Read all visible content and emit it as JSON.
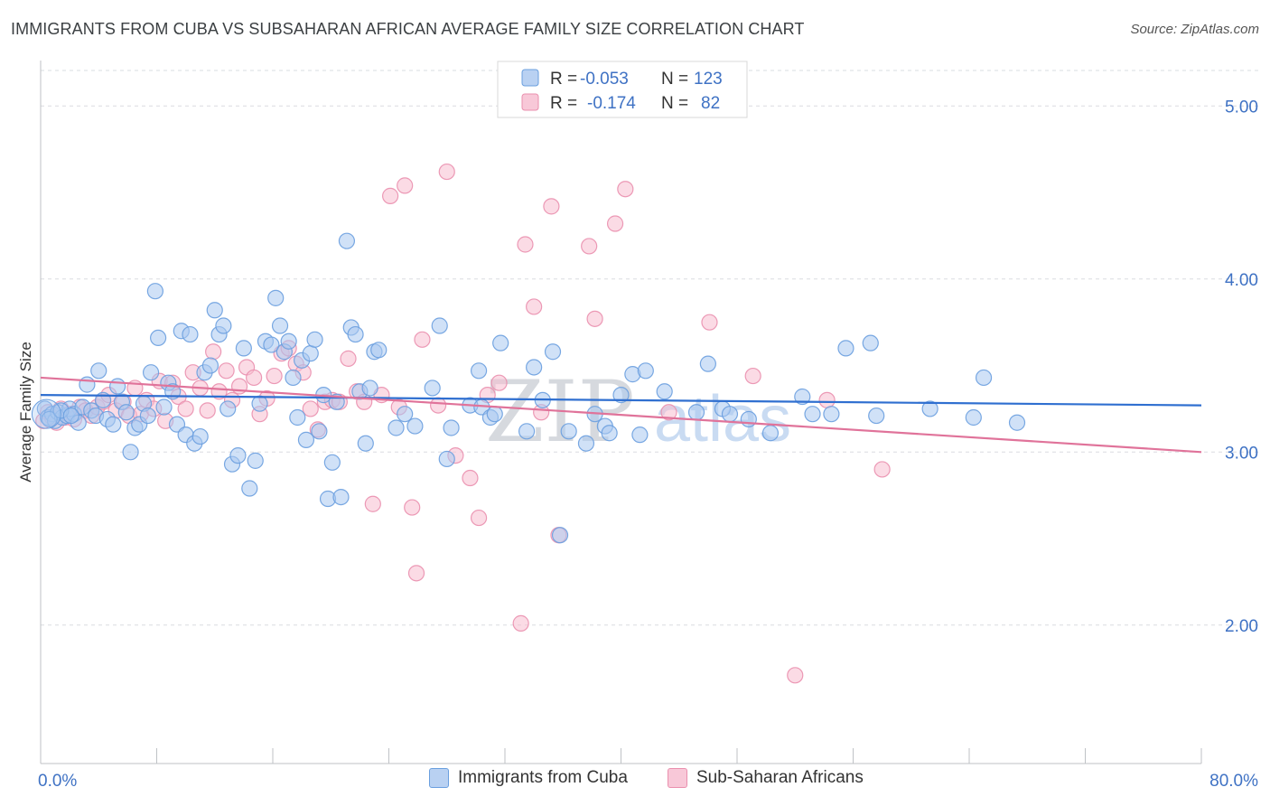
{
  "title": "IMMIGRANTS FROM CUBA VS SUBSAHARAN AFRICAN AVERAGE FAMILY SIZE CORRELATION CHART",
  "source": "Source: ZipAtlas.com",
  "watermark": {
    "zip": "ZIP",
    "atlas": "atlas"
  },
  "colors": {
    "blue_fill": "#a9c8f0",
    "blue_stroke": "#6a9fdf",
    "blue_line": "#2f6fd0",
    "pink_fill": "#f7bdd0",
    "pink_stroke": "#ea8fae",
    "pink_line": "#e0739a",
    "axis_label": "#3f72c4",
    "grid": "#dadce0"
  },
  "stats_legend": [
    {
      "r_label": "R =",
      "r_value": "-0.053",
      "n_label": "N =",
      "n_value": "123"
    },
    {
      "r_label": "R =",
      "r_value": "-0.174",
      "n_label": "N =",
      "n_value": "82"
    }
  ],
  "bottom_legend": [
    "Immigrants from Cuba",
    "Sub-Saharan Africans"
  ],
  "chart_data": {
    "type": "scatter",
    "title": "IMMIGRANTS FROM CUBA VS SUBSAHARAN AFRICAN AVERAGE FAMILY SIZE CORRELATION CHART",
    "xlabel": "",
    "ylabel": "Average Family Size",
    "xlim": [
      0,
      80
    ],
    "ylim": [
      1.2,
      5.15
    ],
    "x_tick_labels": [
      "0.0%",
      "80.0%"
    ],
    "y_ticks": [
      2.0,
      3.0,
      4.0,
      5.0
    ],
    "y_tick_labels": [
      "2.00",
      "3.00",
      "4.00",
      "5.00"
    ],
    "grid": "horizontal dashed",
    "legend_position": "top-center",
    "series": [
      {
        "name": "Immigrants from Cuba",
        "color": "blue",
        "r": -0.053,
        "n": 123,
        "trend": {
          "x": [
            0,
            80
          ],
          "y": [
            3.33,
            3.27
          ]
        },
        "points": [
          [
            0.3,
            3.25
          ],
          [
            0.5,
            3.2
          ],
          [
            0.8,
            3.22
          ],
          [
            1.0,
            3.18
          ],
          [
            1.2,
            3.23
          ],
          [
            1.5,
            3.2
          ],
          [
            1.8,
            3.21
          ],
          [
            2.0,
            3.25
          ],
          [
            2.3,
            3.22
          ],
          [
            2.6,
            3.17
          ],
          [
            2.9,
            3.26
          ],
          [
            3.2,
            3.39
          ],
          [
            3.5,
            3.24
          ],
          [
            3.8,
            3.21
          ],
          [
            4.0,
            3.47
          ],
          [
            4.3,
            3.3
          ],
          [
            4.6,
            3.19
          ],
          [
            5.0,
            3.16
          ],
          [
            5.3,
            3.38
          ],
          [
            5.6,
            3.29
          ],
          [
            5.9,
            3.23
          ],
          [
            6.2,
            3.0
          ],
          [
            6.5,
            3.14
          ],
          [
            6.8,
            3.16
          ],
          [
            7.1,
            3.28
          ],
          [
            7.4,
            3.21
          ],
          [
            7.6,
            3.46
          ],
          [
            7.9,
            3.93
          ],
          [
            8.1,
            3.66
          ],
          [
            8.5,
            3.26
          ],
          [
            8.8,
            3.4
          ],
          [
            9.1,
            3.35
          ],
          [
            9.4,
            3.16
          ],
          [
            9.7,
            3.7
          ],
          [
            10.0,
            3.1
          ],
          [
            10.3,
            3.68
          ],
          [
            10.6,
            3.05
          ],
          [
            11.0,
            3.09
          ],
          [
            11.3,
            3.46
          ],
          [
            11.7,
            3.5
          ],
          [
            12.0,
            3.82
          ],
          [
            12.3,
            3.68
          ],
          [
            12.6,
            3.73
          ],
          [
            12.9,
            3.25
          ],
          [
            13.2,
            2.93
          ],
          [
            13.6,
            2.98
          ],
          [
            14.0,
            3.6
          ],
          [
            14.4,
            2.79
          ],
          [
            14.8,
            2.95
          ],
          [
            15.1,
            3.28
          ],
          [
            15.5,
            3.64
          ],
          [
            15.9,
            3.62
          ],
          [
            16.2,
            3.89
          ],
          [
            16.5,
            3.73
          ],
          [
            16.8,
            3.58
          ],
          [
            17.1,
            3.64
          ],
          [
            17.4,
            3.43
          ],
          [
            17.7,
            3.2
          ],
          [
            18.0,
            3.53
          ],
          [
            18.3,
            3.07
          ],
          [
            18.6,
            3.57
          ],
          [
            18.9,
            3.65
          ],
          [
            19.2,
            3.12
          ],
          [
            19.5,
            3.33
          ],
          [
            19.8,
            2.73
          ],
          [
            20.1,
            2.94
          ],
          [
            20.4,
            3.29
          ],
          [
            20.7,
            2.74
          ],
          [
            21.1,
            4.22
          ],
          [
            21.4,
            3.72
          ],
          [
            21.7,
            3.68
          ],
          [
            22.0,
            3.35
          ],
          [
            22.4,
            3.05
          ],
          [
            22.7,
            3.37
          ],
          [
            23.0,
            3.58
          ],
          [
            23.3,
            3.59
          ],
          [
            24.5,
            3.14
          ],
          [
            25.1,
            3.22
          ],
          [
            25.8,
            3.15
          ],
          [
            27.0,
            3.37
          ],
          [
            27.5,
            3.73
          ],
          [
            28.0,
            2.96
          ],
          [
            28.3,
            3.14
          ],
          [
            29.6,
            3.27
          ],
          [
            30.2,
            3.47
          ],
          [
            30.4,
            3.26
          ],
          [
            31.0,
            3.2
          ],
          [
            31.3,
            3.22
          ],
          [
            31.7,
            3.63
          ],
          [
            33.5,
            3.12
          ],
          [
            34.0,
            3.49
          ],
          [
            34.6,
            3.3
          ],
          [
            35.3,
            3.58
          ],
          [
            35.8,
            2.52
          ],
          [
            36.4,
            3.12
          ],
          [
            37.6,
            3.05
          ],
          [
            38.2,
            3.22
          ],
          [
            38.9,
            3.15
          ],
          [
            39.2,
            3.11
          ],
          [
            40.0,
            3.33
          ],
          [
            40.8,
            3.45
          ],
          [
            41.3,
            3.1
          ],
          [
            41.7,
            3.47
          ],
          [
            43.0,
            3.35
          ],
          [
            45.2,
            3.23
          ],
          [
            46.0,
            3.51
          ],
          [
            47.0,
            3.25
          ],
          [
            47.5,
            3.22
          ],
          [
            48.8,
            3.19
          ],
          [
            50.3,
            3.11
          ],
          [
            52.5,
            3.32
          ],
          [
            53.2,
            3.22
          ],
          [
            54.5,
            3.22
          ],
          [
            55.5,
            3.6
          ],
          [
            57.2,
            3.63
          ],
          [
            57.6,
            3.21
          ],
          [
            61.3,
            3.25
          ],
          [
            64.3,
            3.2
          ],
          [
            65.0,
            3.43
          ],
          [
            67.3,
            3.17
          ],
          [
            0.6,
            3.19
          ],
          [
            1.4,
            3.24
          ],
          [
            2.1,
            3.21
          ]
        ]
      },
      {
        "name": "Sub-Saharan Africans",
        "color": "pink",
        "r": -0.174,
        "n": 82,
        "trend": {
          "x": [
            0,
            80
          ],
          "y": [
            3.43,
            3.0
          ]
        },
        "points": [
          [
            0.2,
            3.18
          ],
          [
            0.5,
            3.23
          ],
          [
            0.8,
            3.2
          ],
          [
            1.1,
            3.17
          ],
          [
            1.4,
            3.25
          ],
          [
            1.7,
            3.2
          ],
          [
            2.0,
            3.22
          ],
          [
            2.3,
            3.19
          ],
          [
            2.7,
            3.26
          ],
          [
            3.1,
            3.24
          ],
          [
            3.5,
            3.21
          ],
          [
            3.9,
            3.26
          ],
          [
            4.3,
            3.29
          ],
          [
            4.7,
            3.33
          ],
          [
            5.2,
            3.24
          ],
          [
            5.7,
            3.29
          ],
          [
            6.1,
            3.21
          ],
          [
            6.5,
            3.37
          ],
          [
            6.9,
            3.22
          ],
          [
            7.3,
            3.3
          ],
          [
            7.8,
            3.25
          ],
          [
            8.2,
            3.41
          ],
          [
            8.6,
            3.18
          ],
          [
            9.1,
            3.4
          ],
          [
            9.5,
            3.32
          ],
          [
            10.0,
            3.25
          ],
          [
            10.5,
            3.46
          ],
          [
            11.0,
            3.37
          ],
          [
            11.5,
            3.24
          ],
          [
            11.9,
            3.58
          ],
          [
            12.3,
            3.35
          ],
          [
            12.8,
            3.47
          ],
          [
            13.2,
            3.3
          ],
          [
            13.7,
            3.38
          ],
          [
            14.2,
            3.49
          ],
          [
            14.7,
            3.43
          ],
          [
            15.1,
            3.22
          ],
          [
            15.6,
            3.31
          ],
          [
            16.1,
            3.44
          ],
          [
            16.6,
            3.57
          ],
          [
            17.1,
            3.6
          ],
          [
            17.6,
            3.51
          ],
          [
            18.1,
            3.46
          ],
          [
            18.6,
            3.25
          ],
          [
            19.1,
            3.13
          ],
          [
            19.6,
            3.29
          ],
          [
            20.1,
            3.3
          ],
          [
            20.6,
            3.29
          ],
          [
            21.2,
            3.54
          ],
          [
            21.8,
            3.35
          ],
          [
            22.3,
            3.29
          ],
          [
            22.9,
            2.7
          ],
          [
            23.5,
            3.33
          ],
          [
            24.1,
            4.48
          ],
          [
            24.7,
            3.26
          ],
          [
            25.1,
            4.54
          ],
          [
            25.6,
            2.68
          ],
          [
            25.9,
            2.3
          ],
          [
            26.3,
            3.65
          ],
          [
            27.4,
            3.27
          ],
          [
            28.0,
            4.62
          ],
          [
            28.6,
            2.98
          ],
          [
            29.6,
            2.85
          ],
          [
            30.2,
            2.62
          ],
          [
            30.8,
            3.33
          ],
          [
            31.6,
            3.4
          ],
          [
            33.1,
            2.01
          ],
          [
            33.4,
            4.2
          ],
          [
            34.0,
            3.84
          ],
          [
            34.5,
            3.23
          ],
          [
            35.2,
            4.42
          ],
          [
            35.7,
            2.52
          ],
          [
            37.8,
            4.19
          ],
          [
            38.2,
            3.77
          ],
          [
            39.6,
            4.32
          ],
          [
            40.3,
            4.52
          ],
          [
            43.3,
            3.23
          ],
          [
            46.1,
            3.75
          ],
          [
            49.1,
            3.44
          ],
          [
            52.0,
            1.71
          ],
          [
            54.2,
            3.3
          ],
          [
            58.0,
            2.9
          ]
        ]
      }
    ]
  }
}
